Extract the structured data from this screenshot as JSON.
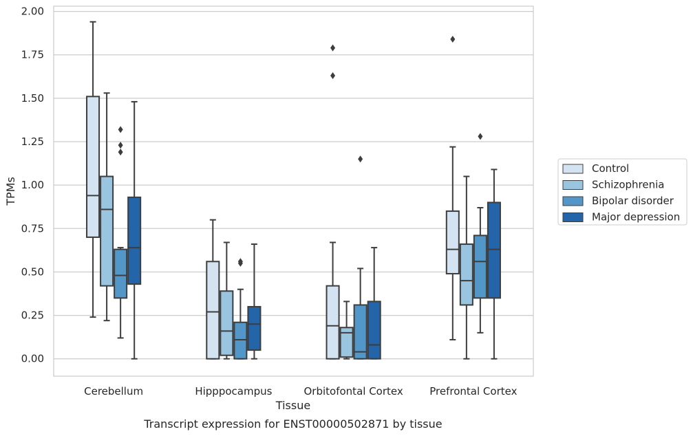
{
  "chart_data": {
    "type": "box",
    "xlabel": "Tissue",
    "ylabel": "TPMs",
    "caption": "Transcript expression for ENST00000502871 by tissue",
    "ylim": [
      -0.1,
      2.03
    ],
    "yticks": [
      "0.00",
      "0.25",
      "0.50",
      "0.75",
      "1.00",
      "1.25",
      "1.50",
      "1.75",
      "2.00"
    ],
    "categories": [
      "Cerebellum",
      "Hipppocampus",
      "Orbitofontal Cortex",
      "Prefrontal Cortex"
    ],
    "grid": true,
    "legend_position": "right",
    "series": [
      {
        "name": "Control",
        "color": "#d4e3f2",
        "boxes": [
          {
            "whislo": 0.24,
            "q1": 0.7,
            "med": 0.94,
            "q3": 1.51,
            "whishi": 1.94,
            "fliers": []
          },
          {
            "whislo": 0.0,
            "q1": 0.0,
            "med": 0.27,
            "q3": 0.56,
            "whishi": 0.8,
            "fliers": []
          },
          {
            "whislo": 0.0,
            "q1": 0.0,
            "med": 0.19,
            "q3": 0.42,
            "whishi": 0.67,
            "fliers": [
              1.63,
              1.79
            ]
          },
          {
            "whislo": 0.11,
            "q1": 0.49,
            "med": 0.63,
            "q3": 0.85,
            "whishi": 1.22,
            "fliers": [
              1.84
            ]
          }
        ]
      },
      {
        "name": "Schizophrenia",
        "color": "#9ac5e0",
        "boxes": [
          {
            "whislo": 0.22,
            "q1": 0.42,
            "med": 0.86,
            "q3": 1.05,
            "whishi": 1.53,
            "fliers": []
          },
          {
            "whislo": 0.0,
            "q1": 0.02,
            "med": 0.16,
            "q3": 0.39,
            "whishi": 0.67,
            "fliers": []
          },
          {
            "whislo": 0.0,
            "q1": 0.01,
            "med": 0.15,
            "q3": 0.18,
            "whishi": 0.33,
            "fliers": []
          },
          {
            "whislo": 0.0,
            "q1": 0.31,
            "med": 0.45,
            "q3": 0.66,
            "whishi": 1.05,
            "fliers": []
          }
        ]
      },
      {
        "name": "Bipolar disorder",
        "color": "#5396c8",
        "boxes": [
          {
            "whislo": 0.12,
            "q1": 0.35,
            "med": 0.48,
            "q3": 0.63,
            "whishi": 0.64,
            "fliers": [
              1.19,
              1.23,
              1.32
            ]
          },
          {
            "whislo": 0.0,
            "q1": 0.0,
            "med": 0.11,
            "q3": 0.21,
            "whishi": 0.4,
            "fliers": [
              0.55,
              0.56
            ]
          },
          {
            "whislo": 0.0,
            "q1": 0.0,
            "med": 0.04,
            "q3": 0.31,
            "whishi": 0.52,
            "fliers": [
              1.15
            ]
          },
          {
            "whislo": 0.15,
            "q1": 0.35,
            "med": 0.56,
            "q3": 0.71,
            "whishi": 0.87,
            "fliers": [
              1.28
            ]
          }
        ]
      },
      {
        "name": "Major depression",
        "color": "#2464a8",
        "boxes": [
          {
            "whislo": 0.0,
            "q1": 0.43,
            "med": 0.64,
            "q3": 0.93,
            "whishi": 1.48,
            "fliers": []
          },
          {
            "whislo": 0.0,
            "q1": 0.05,
            "med": 0.2,
            "q3": 0.3,
            "whishi": 0.66,
            "fliers": []
          },
          {
            "whislo": 0.0,
            "q1": 0.0,
            "med": 0.08,
            "q3": 0.33,
            "whishi": 0.64,
            "fliers": []
          },
          {
            "whislo": 0.0,
            "q1": 0.35,
            "med": 0.63,
            "q3": 0.9,
            "whishi": 1.09,
            "fliers": []
          }
        ]
      }
    ]
  }
}
